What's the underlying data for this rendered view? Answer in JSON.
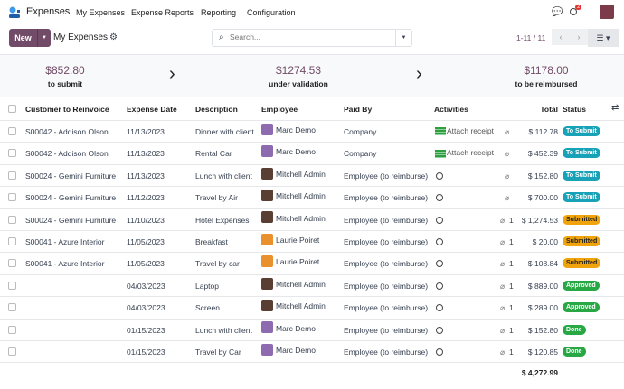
{
  "nav": {
    "app": "Expenses",
    "menus": [
      "My Expenses",
      "Expense Reports",
      "Reporting",
      "Configuration"
    ],
    "notif_count": "2"
  },
  "control": {
    "new_label": "New",
    "title": "My Expenses",
    "search_placeholder": "Search...",
    "pager": "1-11 / 11"
  },
  "summary": [
    {
      "value": "$852.80",
      "label": "to submit"
    },
    {
      "value": "$1274.53",
      "label": "under validation"
    },
    {
      "value": "$1178.00",
      "label": "to be reimbursed"
    }
  ],
  "columns": [
    "Customer to Reinvoice",
    "Expense Date",
    "Description",
    "Employee",
    "Paid By",
    "Activities",
    "Total",
    "Status"
  ],
  "rows": [
    {
      "customer": "S00042 - Addison Olson",
      "date": "11/13/2023",
      "desc": "Dinner with client",
      "employee": "Marc Demo",
      "paid": "Company",
      "activity": "Attach receipt",
      "attach": "",
      "total": "$ 112.78",
      "status": "To Submit"
    },
    {
      "customer": "S00042 - Addison Olson",
      "date": "11/13/2023",
      "desc": "Rental Car",
      "employee": "Marc Demo",
      "paid": "Company",
      "activity": "Attach receipt",
      "attach": "",
      "total": "$ 452.39",
      "status": "To Submit"
    },
    {
      "customer": "S00024 - Gemini Furniture",
      "date": "11/13/2023",
      "desc": "Lunch with client",
      "employee": "Mitchell Admin",
      "paid": "Employee (to reimburse)",
      "activity": "",
      "attach": "",
      "total": "$ 152.80",
      "status": "To Submit"
    },
    {
      "customer": "S00024 - Gemini Furniture",
      "date": "11/12/2023",
      "desc": "Travel by Air",
      "employee": "Mitchell Admin",
      "paid": "Employee (to reimburse)",
      "activity": "",
      "attach": "",
      "total": "$ 700.00",
      "status": "To Submit"
    },
    {
      "customer": "S00024 - Gemini Furniture",
      "date": "11/10/2023",
      "desc": "Hotel Expenses",
      "employee": "Mitchell Admin",
      "paid": "Employee (to reimburse)",
      "activity": "",
      "attach": "1",
      "total": "$ 1,274.53",
      "status": "Submitted"
    },
    {
      "customer": "S00041 - Azure Interior",
      "date": "11/05/2023",
      "desc": "Breakfast",
      "employee": "Laurie Poiret",
      "paid": "Employee (to reimburse)",
      "activity": "",
      "attach": "1",
      "total": "$ 20.00",
      "status": "Submitted"
    },
    {
      "customer": "S00041 - Azure Interior",
      "date": "11/05/2023",
      "desc": "Travel by car",
      "employee": "Laurie Poiret",
      "paid": "Employee (to reimburse)",
      "activity": "",
      "attach": "1",
      "total": "$ 108.84",
      "status": "Submitted"
    },
    {
      "customer": "",
      "date": "04/03/2023",
      "desc": "Laptop",
      "employee": "Mitchell Admin",
      "paid": "Employee (to reimburse)",
      "activity": "",
      "attach": "1",
      "total": "$ 889.00",
      "status": "Approved"
    },
    {
      "customer": "",
      "date": "04/03/2023",
      "desc": "Screen",
      "employee": "Mitchell Admin",
      "paid": "Employee (to reimburse)",
      "activity": "",
      "attach": "1",
      "total": "$ 289.00",
      "status": "Approved"
    },
    {
      "customer": "",
      "date": "01/15/2023",
      "desc": "Lunch with client",
      "employee": "Marc Demo",
      "paid": "Employee (to reimburse)",
      "activity": "",
      "attach": "1",
      "total": "$ 152.80",
      "status": "Done"
    },
    {
      "customer": "",
      "date": "01/15/2023",
      "desc": "Travel by Car",
      "employee": "Marc Demo",
      "paid": "Employee (to reimburse)",
      "activity": "",
      "attach": "1",
      "total": "$ 120.85",
      "status": "Done"
    }
  ],
  "footer_total": "$ 4,272.99",
  "colors": {
    "brand": "#714b67",
    "To Submit": "#17a2b8",
    "Submitted": "#f0a30a",
    "Approved": "#28a745",
    "Done": "#28a745"
  }
}
